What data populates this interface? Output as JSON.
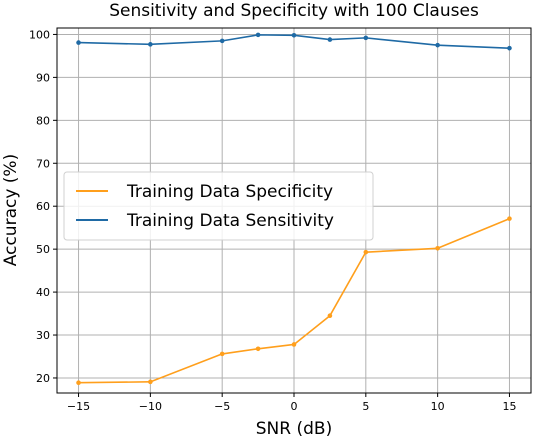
{
  "chart_data": {
    "type": "line",
    "title": "Sensitivity and Specificity with 100 Clauses",
    "xlabel": "SNR (dB)",
    "ylabel": "Accuracy (%)",
    "xlim": [
      -16.5,
      16.5
    ],
    "ylim": [
      16.5,
      101.5
    ],
    "x_ticks": [
      -15,
      -10,
      -5,
      0,
      5,
      10,
      15
    ],
    "y_ticks": [
      20,
      30,
      40,
      50,
      60,
      70,
      80,
      90,
      100
    ],
    "grid": true,
    "legend_position": "center-left",
    "x": [
      -15,
      -10,
      -5,
      -2.5,
      0,
      2.5,
      5,
      10,
      15
    ],
    "series": [
      {
        "name": "Training Data Specificity",
        "color": "#ff9f1c",
        "values": [
          18.9,
          19.1,
          25.6,
          26.8,
          27.8,
          34.5,
          49.3,
          50.2,
          57.1
        ]
      },
      {
        "name": "Training Data Sensitivity",
        "color": "#1f6aa5",
        "values": [
          98.1,
          97.7,
          98.5,
          99.9,
          99.8,
          98.8,
          99.2,
          97.5,
          96.8
        ]
      }
    ]
  }
}
